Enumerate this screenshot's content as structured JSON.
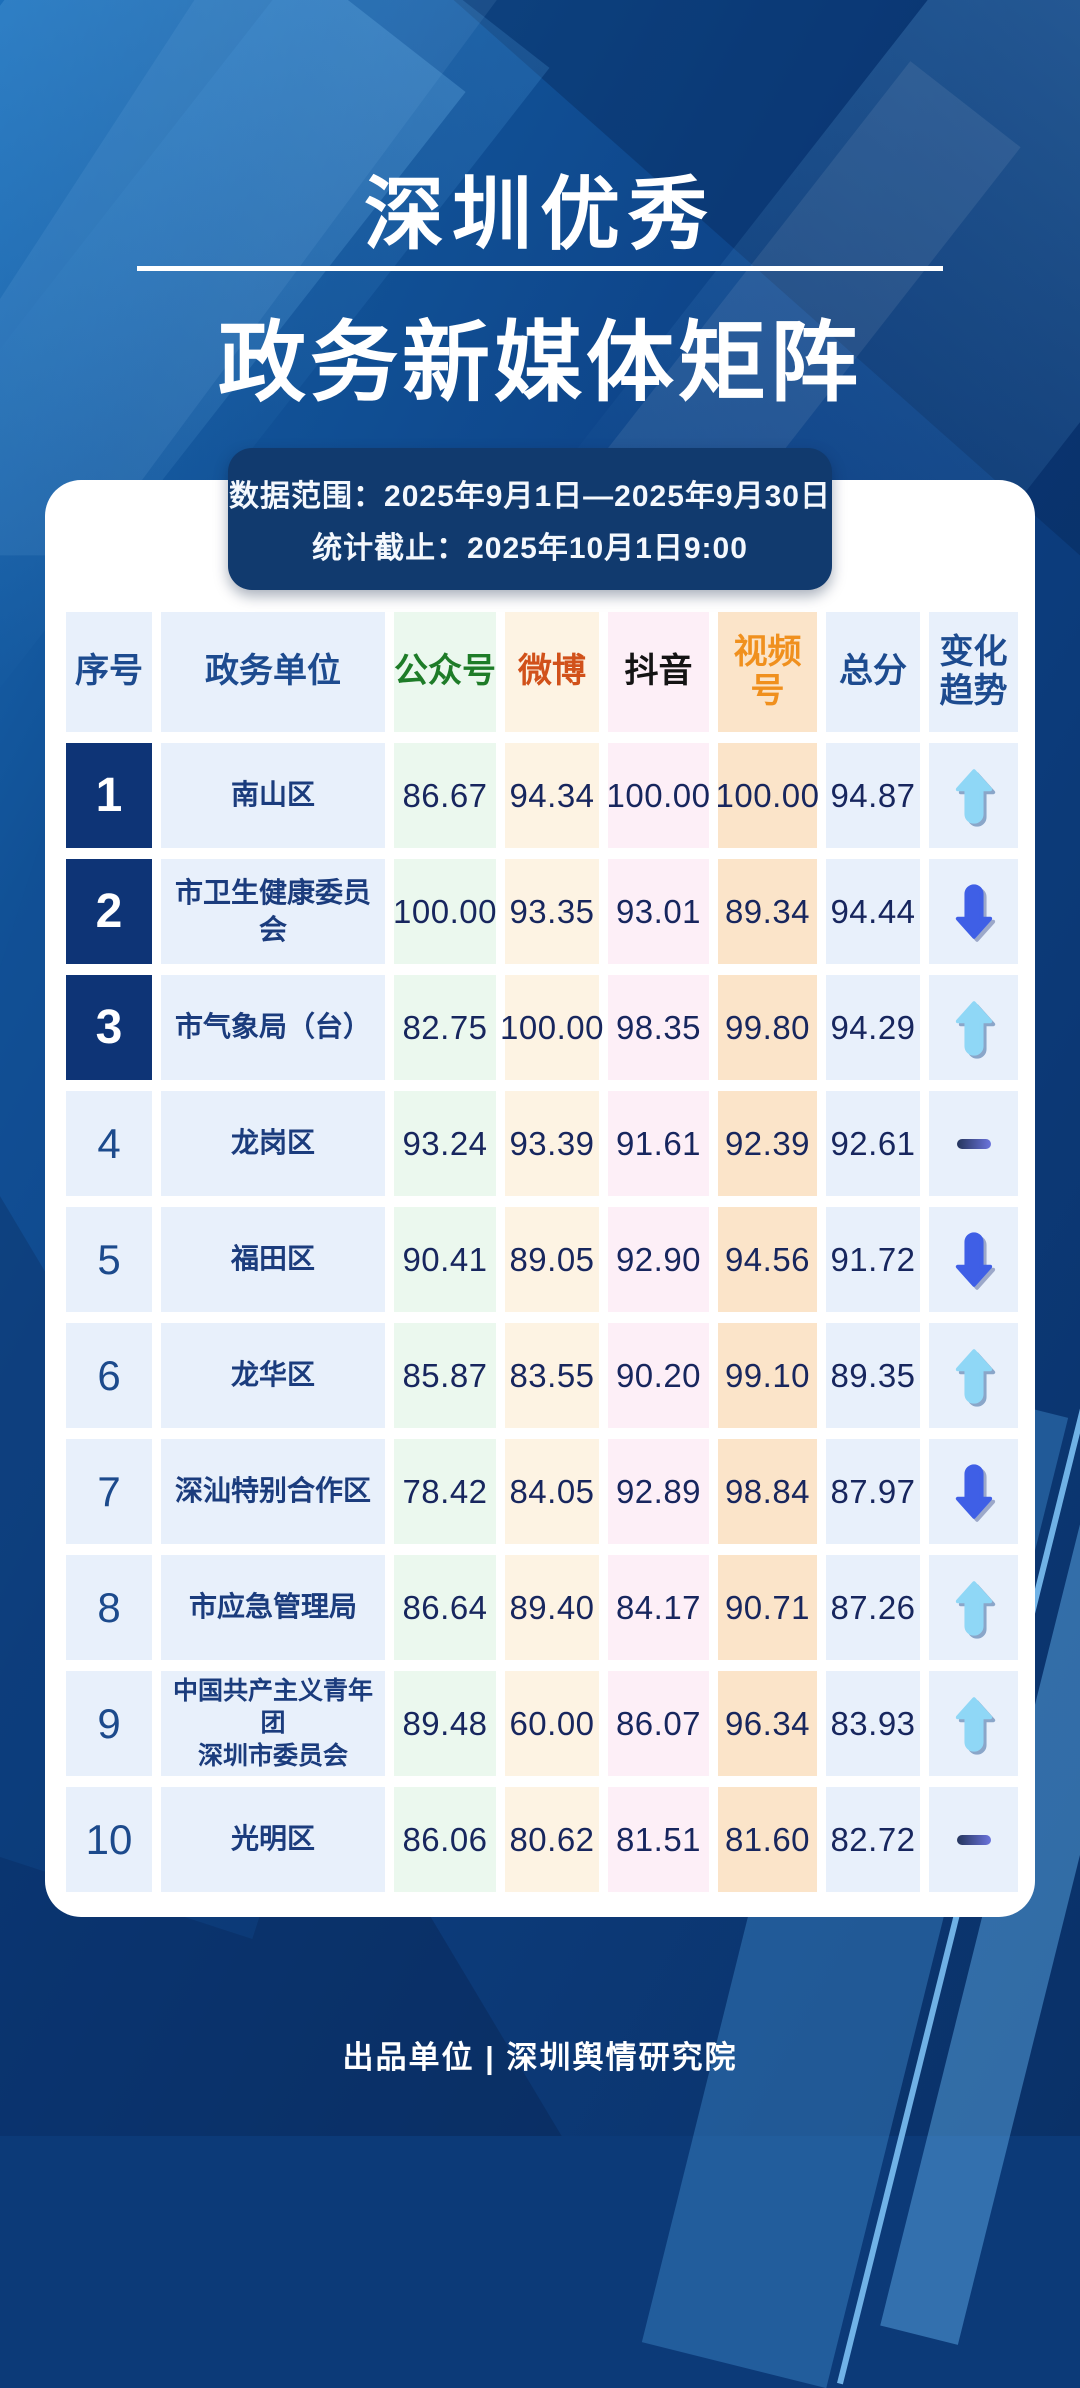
{
  "title": {
    "line1": "深圳优秀",
    "line2": "政务新媒体矩阵"
  },
  "banner": {
    "line1": "数据范围：2025年9月1日—2025年9月30日",
    "line2": "统计截止：2025年10月1日9:00"
  },
  "table": {
    "headers": [
      {
        "label": "序号"
      },
      {
        "label": "政务单位"
      },
      {
        "label": "公众号"
      },
      {
        "label": "微博"
      },
      {
        "label": "抖音"
      },
      {
        "label": "视频号"
      },
      {
        "label": "总分"
      },
      {
        "label": "变化趋势"
      }
    ],
    "rows": [
      {
        "rank": "1",
        "unit": "南山区",
        "gzh": "86.67",
        "weibo": "94.34",
        "douyin": "100.00",
        "sph": "100.00",
        "total": "94.87",
        "trend": "up"
      },
      {
        "rank": "2",
        "unit": "市卫生健康委员会",
        "gzh": "100.00",
        "weibo": "93.35",
        "douyin": "93.01",
        "sph": "89.34",
        "total": "94.44",
        "trend": "down"
      },
      {
        "rank": "3",
        "unit": "市气象局（台）",
        "gzh": "82.75",
        "weibo": "100.00",
        "douyin": "98.35",
        "sph": "99.80",
        "total": "94.29",
        "trend": "up"
      },
      {
        "rank": "4",
        "unit": "龙岗区",
        "gzh": "93.24",
        "weibo": "93.39",
        "douyin": "91.61",
        "sph": "92.39",
        "total": "92.61",
        "trend": "flat"
      },
      {
        "rank": "5",
        "unit": "福田区",
        "gzh": "90.41",
        "weibo": "89.05",
        "douyin": "92.90",
        "sph": "94.56",
        "total": "91.72",
        "trend": "down"
      },
      {
        "rank": "6",
        "unit": "龙华区",
        "gzh": "85.87",
        "weibo": "83.55",
        "douyin": "90.20",
        "sph": "99.10",
        "total": "89.35",
        "trend": "up"
      },
      {
        "rank": "7",
        "unit": "深汕特别合作区",
        "gzh": "78.42",
        "weibo": "84.05",
        "douyin": "92.89",
        "sph": "98.84",
        "total": "87.97",
        "trend": "down"
      },
      {
        "rank": "8",
        "unit": "市应急管理局",
        "gzh": "86.64",
        "weibo": "89.40",
        "douyin": "84.17",
        "sph": "90.71",
        "total": "87.26",
        "trend": "up"
      },
      {
        "rank": "9",
        "unit": "中国共产主义青年团\n深圳市委员会",
        "gzh": "89.48",
        "weibo": "60.00",
        "douyin": "86.07",
        "sph": "96.34",
        "total": "83.93",
        "trend": "up"
      },
      {
        "rank": "10",
        "unit": "光明区",
        "gzh": "86.06",
        "weibo": "80.62",
        "douyin": "81.51",
        "sph": "81.60",
        "total": "82.72",
        "trend": "flat"
      }
    ]
  },
  "footer": {
    "credit": "出品单位 | 深圳舆情研究院"
  },
  "colors": {
    "background_blue": "#0d4186",
    "banner_navy": "#113a6e",
    "card_white": "#ffffff",
    "rank_top_navy": "#0e3476",
    "header_navy": "#1d4b8f",
    "gongzhonghao_green": "#1e7c28",
    "weibo_vermilion": "#d1511a",
    "douyin_black": "#141414",
    "shipinhao_orange": "#f0901e",
    "score_text_navy": "#17265e",
    "cell_blue": "#e8f0fb",
    "cell_green": "#ebf8ee",
    "cell_cream": "#fdf3e3",
    "cell_pink": "#fdeff7",
    "cell_peach": "#fbe4c9",
    "arrow_up_lightblue": "#8fd7f6",
    "arrow_down_blue": "#3f5fe6"
  },
  "chart_data": {
    "type": "table",
    "title": "深圳优秀政务新媒体矩阵",
    "date_range": "2025年9月1日—2025年9月30日",
    "stat_deadline": "2025年10月1日9:00",
    "columns": [
      "序号",
      "政务单位",
      "公众号",
      "微博",
      "抖音",
      "视频号",
      "总分",
      "变化趋势"
    ],
    "rows": [
      [
        1,
        "南山区",
        86.67,
        94.34,
        100.0,
        100.0,
        94.87,
        "up"
      ],
      [
        2,
        "市卫生健康委员会",
        100.0,
        93.35,
        93.01,
        89.34,
        94.44,
        "down"
      ],
      [
        3,
        "市气象局（台）",
        82.75,
        100.0,
        98.35,
        99.8,
        94.29,
        "up"
      ],
      [
        4,
        "龙岗区",
        93.24,
        93.39,
        91.61,
        92.39,
        92.61,
        "flat"
      ],
      [
        5,
        "福田区",
        90.41,
        89.05,
        92.9,
        94.56,
        91.72,
        "down"
      ],
      [
        6,
        "龙华区",
        85.87,
        83.55,
        90.2,
        99.1,
        89.35,
        "up"
      ],
      [
        7,
        "深汕特别合作区",
        78.42,
        84.05,
        92.89,
        98.84,
        87.97,
        "down"
      ],
      [
        8,
        "市应急管理局",
        86.64,
        89.4,
        84.17,
        90.71,
        87.26,
        "up"
      ],
      [
        9,
        "中国共产主义青年团深圳市委员会",
        89.48,
        60.0,
        86.07,
        96.34,
        83.93,
        "up"
      ],
      [
        10,
        "光明区",
        86.06,
        80.62,
        81.51,
        81.6,
        82.72,
        "flat"
      ]
    ]
  }
}
